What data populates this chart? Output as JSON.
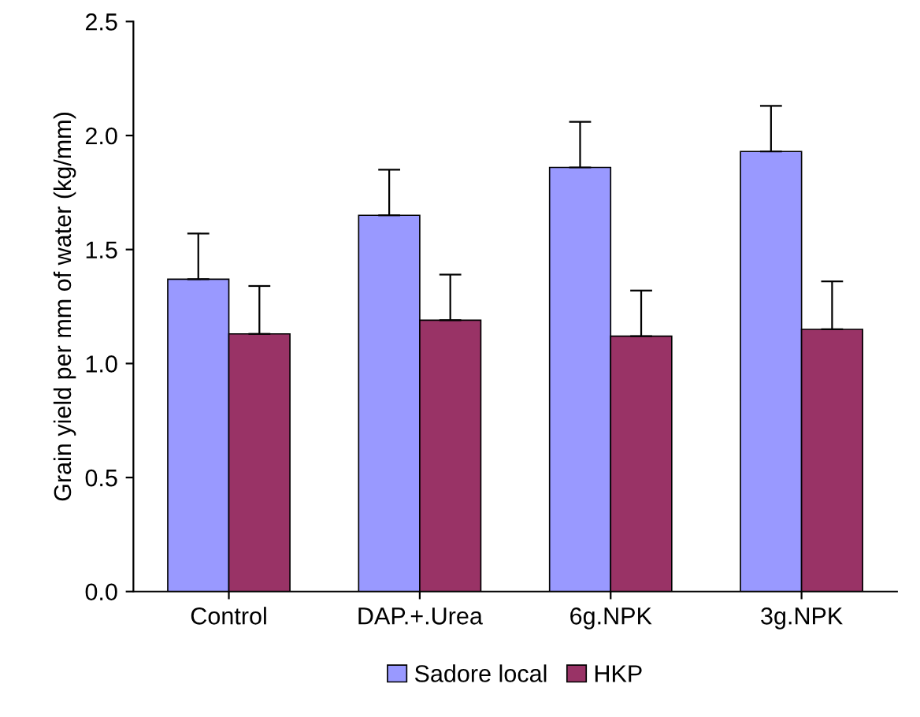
{
  "chart_data": {
    "type": "bar",
    "ylabel": "Grain yield per mm of water (kg/mm)",
    "categories": [
      "Control",
      "DAP.+.Urea",
      "6g.NPK",
      "3g.NPK"
    ],
    "series": [
      {
        "name": "Sadore local",
        "color": "#9999ff",
        "values": [
          1.37,
          1.65,
          1.86,
          1.93
        ],
        "errors": [
          [
            1.37,
            1.57
          ],
          [
            1.65,
            1.85
          ],
          [
            1.86,
            2.06
          ],
          [
            1.93,
            2.13
          ]
        ]
      },
      {
        "name": "HKP",
        "color": "#993366",
        "values": [
          1.13,
          1.19,
          1.12,
          1.15
        ],
        "errors": [
          [
            1.13,
            1.34
          ],
          [
            1.19,
            1.39
          ],
          [
            1.12,
            1.32
          ],
          [
            1.15,
            1.36
          ]
        ]
      }
    ],
    "ylim": [
      0,
      2.5
    ],
    "yticks": [
      {
        "value": 0,
        "label": "0.0"
      },
      {
        "value": 0.5,
        "label": "0.5"
      },
      {
        "value": 1,
        "label": "1.0"
      },
      {
        "value": 1.5,
        "label": "1.5"
      },
      {
        "value": 2,
        "label": "2.0"
      },
      {
        "value": 2.5,
        "label": "2.5"
      }
    ],
    "grid": false,
    "legend": "bottom"
  }
}
